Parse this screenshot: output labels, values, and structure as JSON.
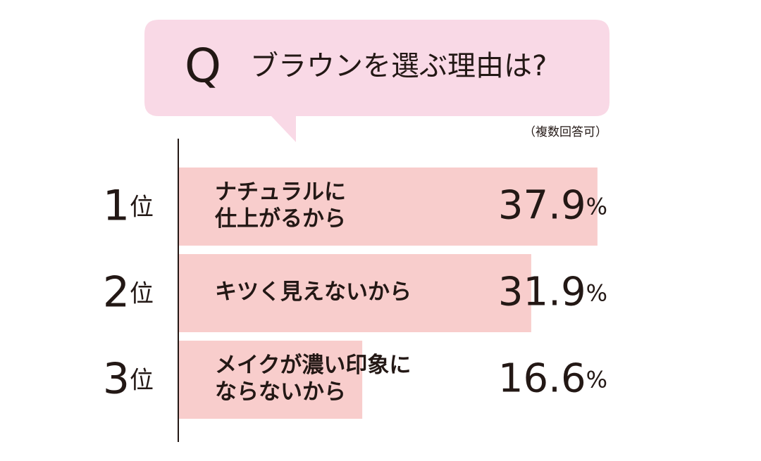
{
  "chart_data": {
    "type": "bar",
    "orientation": "horizontal",
    "question_mark": "Q",
    "title": "ブラウンを選ぶ理由は?",
    "subtitle": "（複数回答可）",
    "ranks": [
      "1位",
      "2位",
      "3位"
    ],
    "categories": [
      [
        "ナチュラルに",
        "仕上がるから"
      ],
      [
        "キツく見えないから"
      ],
      [
        "メイクが濃い印象に",
        "ならないから"
      ]
    ],
    "values": [
      37.9,
      31.9,
      16.6
    ],
    "value_labels": [
      "37.9%",
      "31.9%",
      "16.6%"
    ],
    "color": "#f8cdcc",
    "bubble_color": "#f9d9e6"
  }
}
